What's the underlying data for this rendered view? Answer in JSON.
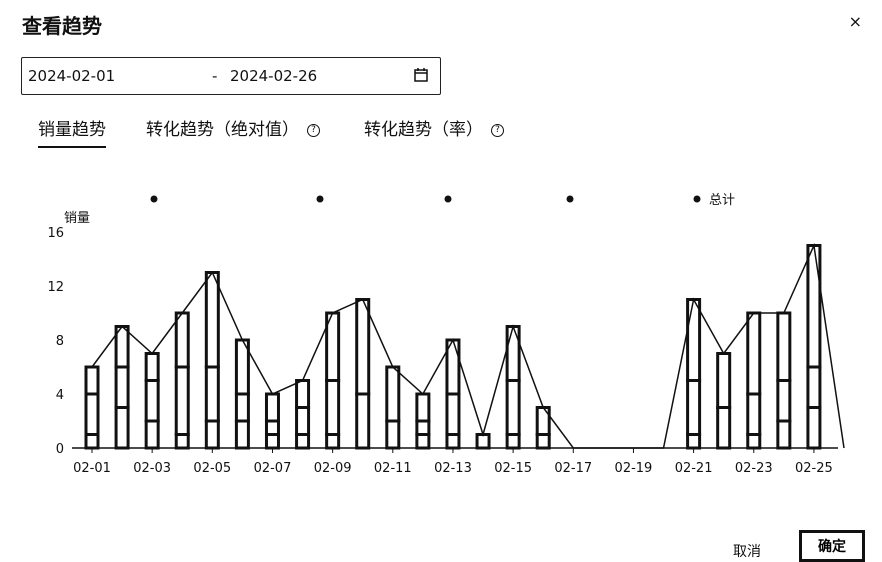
{
  "dialog": {
    "title": "查看趋势",
    "close_label": "×"
  },
  "date_range": {
    "start": "2024-02-01",
    "separator": "-",
    "end": "2024-02-26",
    "icon": "calendar-icon"
  },
  "tabs": [
    {
      "label": "销量趋势",
      "active": true
    },
    {
      "label": "转化趋势（绝对值）",
      "help_icon": "help-circle-icon"
    },
    {
      "label": "转化趋势（率）",
      "help_icon": "help-circle-icon"
    }
  ],
  "chart_data": {
    "type": "bar",
    "ylabel": "销量",
    "ylim": [
      0,
      16
    ],
    "yticks": [
      0,
      4,
      8,
      12,
      16
    ],
    "legend": {
      "items": [
        "",
        "",
        "",
        "",
        "总计"
      ],
      "placement": "top"
    },
    "x": [
      "02-01",
      "02-02",
      "02-03",
      "02-04",
      "02-05",
      "02-06",
      "02-07",
      "02-08",
      "02-09",
      "02-10",
      "02-11",
      "02-12",
      "02-13",
      "02-14",
      "02-15",
      "02-16",
      "02-17",
      "02-18",
      "02-19",
      "02-20",
      "02-21",
      "02-22",
      "02-23",
      "02-24",
      "02-25",
      "02-26"
    ],
    "x_tick_labels": [
      "02-01",
      "02-03",
      "02-05",
      "02-07",
      "02-09",
      "02-11",
      "02-13",
      "02-15",
      "02-17",
      "02-19",
      "02-21",
      "02-23",
      "02-25"
    ],
    "series": [
      {
        "values": [
          1,
          3,
          2,
          1,
          2,
          2,
          1,
          1,
          1,
          0,
          0,
          1,
          1,
          0,
          1,
          0,
          0,
          0,
          0,
          0,
          1,
          0,
          1,
          2,
          3,
          0
        ]
      },
      {
        "values": [
          3,
          3,
          3,
          5,
          4,
          2,
          1,
          2,
          4,
          4,
          2,
          1,
          3,
          1,
          4,
          1,
          0,
          0,
          0,
          0,
          4,
          3,
          3,
          3,
          3,
          0
        ]
      },
      {
        "values": [
          2,
          3,
          2,
          4,
          7,
          4,
          2,
          2,
          5,
          7,
          4,
          2,
          4,
          0,
          4,
          2,
          0,
          0,
          0,
          0,
          6,
          4,
          6,
          5,
          9,
          0
        ]
      },
      {
        "values": [
          0,
          0,
          0,
          0,
          0,
          0,
          0,
          0,
          0,
          0,
          0,
          0,
          0,
          0,
          0,
          0,
          0,
          0,
          0,
          0,
          0,
          0,
          0,
          0,
          0,
          0
        ]
      }
    ],
    "total": [
      6,
      9,
      7,
      10,
      13,
      8,
      4,
      5,
      10,
      11,
      6,
      4,
      8,
      1,
      9,
      3,
      0,
      0,
      0,
      0,
      11,
      7,
      10,
      10,
      15,
      0
    ]
  },
  "footer": {
    "cancel_label": "取消",
    "ok_label": "确定"
  }
}
